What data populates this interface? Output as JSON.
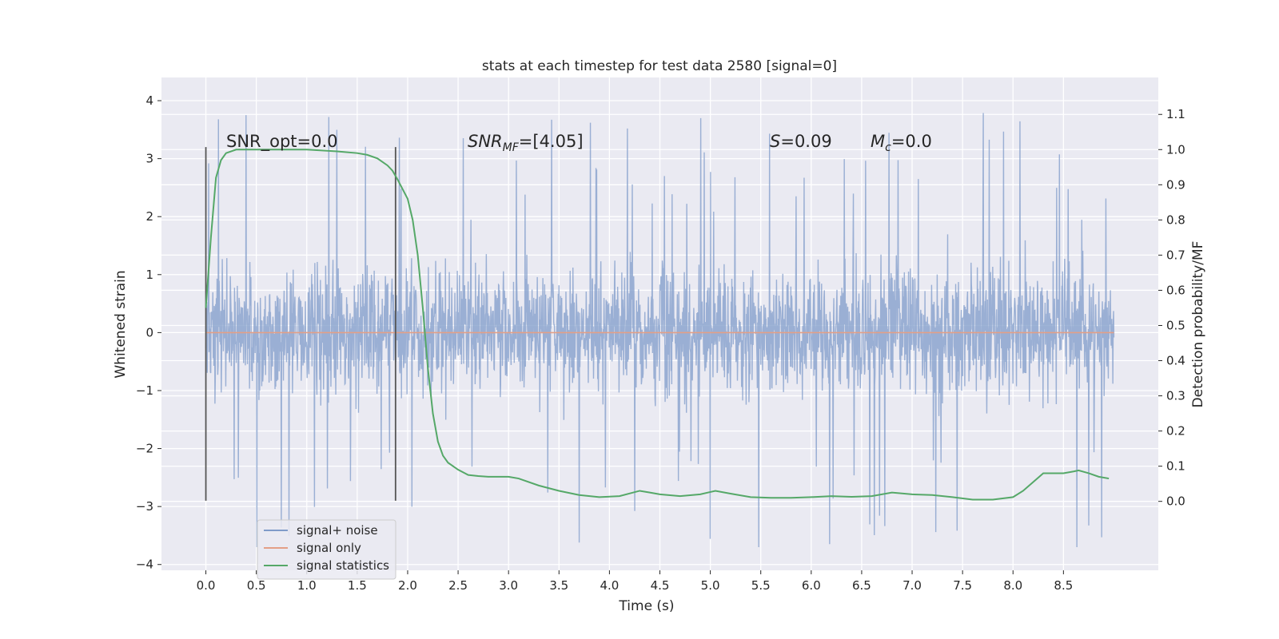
{
  "chart_data": {
    "type": "line",
    "title": "stats at each timestep for test data 2580 [signal=0]",
    "xlabel": "Time (s)",
    "ylabel": "Whitened strain",
    "y2label": "Detection probability/MF",
    "xlim": [
      -0.44,
      9.44
    ],
    "ylim": [
      -4.1,
      4.4
    ],
    "y2lim": [
      -0.196,
      1.205
    ],
    "xticks": [
      "0.0",
      "0.5",
      "1.0",
      "1.5",
      "2.0",
      "2.5",
      "3.0",
      "3.5",
      "4.0",
      "4.5",
      "5.0",
      "5.5",
      "6.0",
      "6.5",
      "7.0",
      "7.5",
      "8.0",
      "8.5"
    ],
    "yticks": [
      "4",
      "3",
      "2",
      "1",
      "0",
      "−1",
      "−2",
      "−3",
      "−4"
    ],
    "y2ticks": [
      "1.1",
      "1.0",
      "0.9",
      "0.8",
      "0.7",
      "0.6",
      "0.5",
      "0.4",
      "0.3",
      "0.2",
      "0.1",
      "0.0"
    ],
    "grid": true,
    "legend_position": "lower-left",
    "annotations": {
      "snr_opt": "SNR_opt=0.0",
      "snr_mf_base": "SNR",
      "snr_mf_sub": "MF",
      "snr_mf_value": "=[4.05]",
      "s_symbol": "S",
      "s_value": "=0.09",
      "mc_symbol": "M",
      "mc_sub": "c",
      "mc_value": "=0.0"
    },
    "vlines": [
      0.0,
      1.88
    ],
    "series": [
      {
        "name": "signal+ noise",
        "color": "#7f9bc9",
        "description_envelope": {
          "x": [
            0.0,
            9.0
          ],
          "core_range": [
            -1.6,
            1.4
          ],
          "spike_range": [
            -3.7,
            4.0
          ]
        }
      },
      {
        "name": "signal only",
        "color": "#e39f86",
        "x": [
          0.0,
          9.0
        ],
        "y": [
          0.0,
          0.0
        ]
      },
      {
        "name": "signal statistics",
        "color": "#55a868",
        "axis": "right",
        "x": [
          0.0,
          0.05,
          0.1,
          0.15,
          0.2,
          0.3,
          0.5,
          0.8,
          1.0,
          1.3,
          1.5,
          1.6,
          1.7,
          1.8,
          1.85,
          1.9,
          2.0,
          2.05,
          2.1,
          2.15,
          2.2,
          2.25,
          2.3,
          2.35,
          2.4,
          2.5,
          2.6,
          2.7,
          2.8,
          3.0,
          3.1,
          3.3,
          3.5,
          3.7,
          3.9,
          4.1,
          4.3,
          4.4,
          4.5,
          4.7,
          4.9,
          5.05,
          5.2,
          5.4,
          5.6,
          5.8,
          6.0,
          6.2,
          6.4,
          6.6,
          6.8,
          7.0,
          7.2,
          7.4,
          7.6,
          7.8,
          8.0,
          8.1,
          8.2,
          8.3,
          8.5,
          8.6,
          8.65,
          8.75,
          8.85,
          8.95
        ],
        "y": [
          0.55,
          0.75,
          0.92,
          0.97,
          0.99,
          1.0,
          1.0,
          1.0,
          1.0,
          0.995,
          0.99,
          0.985,
          0.975,
          0.955,
          0.94,
          0.915,
          0.86,
          0.8,
          0.7,
          0.55,
          0.38,
          0.25,
          0.17,
          0.13,
          0.11,
          0.09,
          0.075,
          0.072,
          0.07,
          0.07,
          0.065,
          0.045,
          0.03,
          0.018,
          0.012,
          0.015,
          0.03,
          0.025,
          0.02,
          0.015,
          0.02,
          0.03,
          0.022,
          0.012,
          0.01,
          0.01,
          0.012,
          0.015,
          0.013,
          0.015,
          0.025,
          0.02,
          0.018,
          0.012,
          0.005,
          0.005,
          0.012,
          0.03,
          0.055,
          0.08,
          0.08,
          0.085,
          0.088,
          0.08,
          0.07,
          0.065
        ]
      }
    ]
  }
}
